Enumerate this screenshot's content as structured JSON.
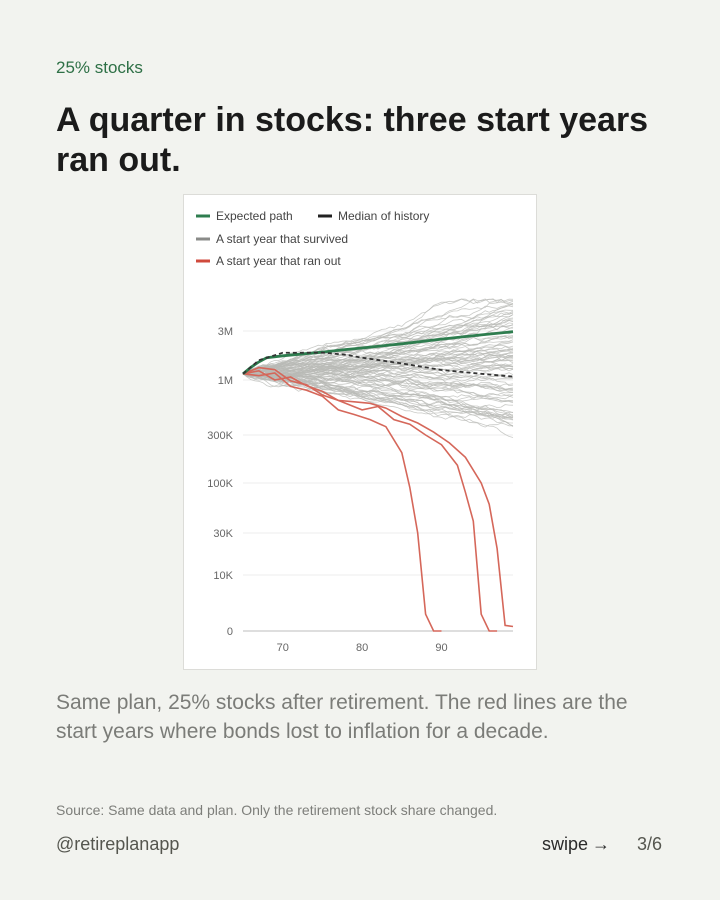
{
  "eyebrow": "25% stocks",
  "title": "A quarter in stocks: three start years ran out.",
  "body": "Same plan, 25% stocks after retirement. The red lines are the start years where bonds lost to inflation for a decade.",
  "source": "Source: Same data and plan. Only the retirement stock share changed.",
  "handle": "@retireplanapp",
  "swipe": {
    "label": "swipe",
    "arrow": "→"
  },
  "page_indicator": "3/6",
  "colors": {
    "expected": "#2e7d4f",
    "median": "#333333",
    "survived": "#b8b9b6",
    "ran_out": "#d5675a",
    "background": "#f2f3ef",
    "accent": "#2e7046"
  },
  "chart_data": {
    "type": "line",
    "yscale": "custom log-like with zero floor",
    "yticks": [
      {
        "label": "3M",
        "value": 3000000
      },
      {
        "label": "1M",
        "value": 1000000
      },
      {
        "label": "300K",
        "value": 300000
      },
      {
        "label": "100K",
        "value": 100000
      },
      {
        "label": "30K",
        "value": 30000
      },
      {
        "label": "10K",
        "value": 10000
      },
      {
        "label": "0",
        "value": 0
      }
    ],
    "xticks": [
      70,
      80,
      90
    ],
    "xlim": [
      65,
      99
    ],
    "legend": [
      {
        "label": "Expected path",
        "style": "expected"
      },
      {
        "label": "Median of history",
        "style": "median"
      },
      {
        "label": "A start year that survived",
        "style": "survived"
      },
      {
        "label": "A start year that ran out",
        "style": "ran_out"
      }
    ],
    "series": [
      {
        "name": "Expected path",
        "style": "expected",
        "x": [
          65,
          66,
          67,
          68,
          70,
          72,
          75,
          78,
          80,
          85,
          90,
          95,
          99
        ],
        "y": [
          1150000,
          1330000,
          1500000,
          1650000,
          1720000,
          1780000,
          1870000,
          1980000,
          2050000,
          2250000,
          2500000,
          2750000,
          2950000
        ]
      },
      {
        "name": "Median of history",
        "style": "median",
        "x": [
          65,
          67,
          70,
          75,
          78,
          80,
          85,
          90,
          95,
          99
        ],
        "y": [
          1150000,
          1560000,
          1840000,
          1850000,
          1760000,
          1650000,
          1450000,
          1250000,
          1150000,
          1080000
        ]
      },
      {
        "style": "ran_out",
        "x": [
          65,
          67,
          69,
          71,
          73,
          75,
          77,
          79,
          81,
          83,
          85,
          86,
          87,
          88,
          89,
          90
        ],
        "y": [
          1150000,
          1100000,
          1170000,
          870000,
          800000,
          700000,
          520000,
          470000,
          420000,
          360000,
          200000,
          90000,
          30000,
          3000,
          0,
          0
        ]
      },
      {
        "style": "ran_out",
        "x": [
          65,
          67,
          69,
          71,
          73,
          75,
          77,
          80,
          82,
          84,
          86,
          88,
          90,
          92,
          93,
          94,
          95,
          96,
          97
        ],
        "y": [
          1150000,
          1320000,
          1260000,
          980000,
          900000,
          720000,
          640000,
          520000,
          560000,
          420000,
          380000,
          300000,
          240000,
          150000,
          80000,
          40000,
          3000,
          0,
          0
        ]
      },
      {
        "style": "ran_out",
        "x": [
          65,
          67,
          69,
          71,
          73,
          75,
          77,
          79,
          81,
          83,
          85,
          87,
          89,
          91,
          93,
          95,
          96,
          97,
          98,
          99
        ],
        "y": [
          1150000,
          1230000,
          1000000,
          1070000,
          880000,
          780000,
          640000,
          620000,
          600000,
          540000,
          450000,
          390000,
          320000,
          250000,
          180000,
          100000,
          60000,
          20000,
          1000,
          800
        ]
      }
    ]
  }
}
